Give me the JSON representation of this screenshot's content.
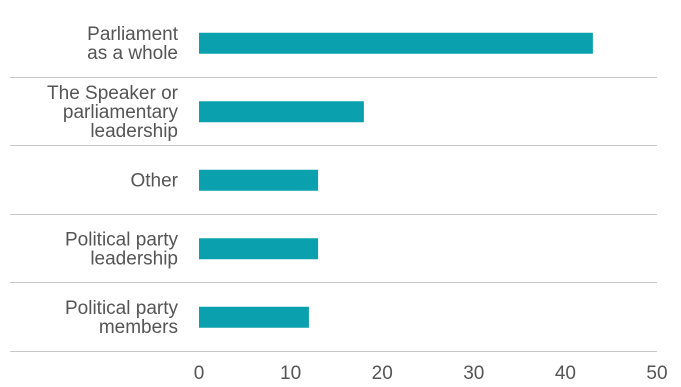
{
  "chart_data": {
    "type": "bar",
    "orientation": "horizontal",
    "categories": [
      [
        "Parliament",
        "as a whole"
      ],
      [
        "The Speaker or",
        "parliamentary",
        "leadership"
      ],
      [
        "Other"
      ],
      [
        "Political party",
        "leadership"
      ],
      [
        "Political party",
        "members"
      ]
    ],
    "values": [
      43,
      18,
      13,
      13,
      12
    ],
    "xlim": [
      0,
      50
    ],
    "xticks": [
      "0",
      "10",
      "20",
      "30",
      "40",
      "50"
    ],
    "title": "",
    "xlabel": "",
    "ylabel": "",
    "grid": false,
    "legend": "none",
    "bar_color": "#0aa0ae"
  }
}
